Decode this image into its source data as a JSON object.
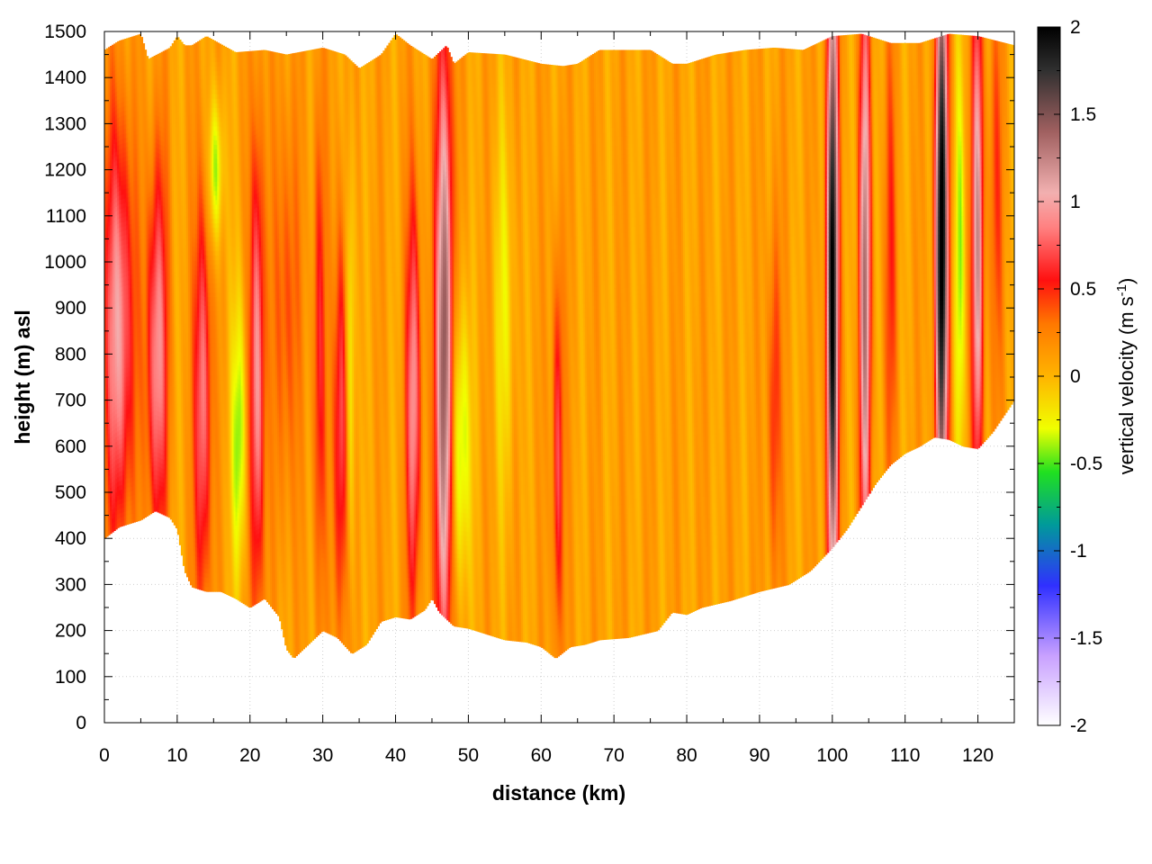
{
  "chart_data": {
    "type": "heatmap",
    "title": "",
    "xlabel": "distance (km)",
    "ylabel": "height (m) asl",
    "xlim": [
      0,
      125
    ],
    "ylim": [
      0,
      1500
    ],
    "grid": true,
    "x_ticks": [
      "0",
      "10",
      "20",
      "30",
      "40",
      "50",
      "60",
      "70",
      "80",
      "90",
      "100",
      "110",
      "120"
    ],
    "y_ticks": [
      "0",
      "100",
      "200",
      "300",
      "400",
      "500",
      "600",
      "700",
      "800",
      "900",
      "1000",
      "1100",
      "1200",
      "1300",
      "1400",
      "1500"
    ],
    "colorbar": {
      "label_prefix": "vertical velocity (m s",
      "label_superscript": "-1",
      "label_suffix": ")",
      "range": [
        -2,
        2
      ],
      "ticks": [
        "2",
        "1.5",
        "1",
        "0.5",
        "0",
        "-0.5",
        "-1",
        "-1.5",
        "-2"
      ],
      "stops": [
        {
          "value": -2.0,
          "color": "#ffffff"
        },
        {
          "value": -1.6,
          "color": "#c8a0ff"
        },
        {
          "value": -1.2,
          "color": "#3030ff"
        },
        {
          "value": -0.85,
          "color": "#009a9a"
        },
        {
          "value": -0.55,
          "color": "#20e020"
        },
        {
          "value": -0.3,
          "color": "#f0ff00"
        },
        {
          "value": 0.0,
          "color": "#ffb400"
        },
        {
          "value": 0.3,
          "color": "#ff7800"
        },
        {
          "value": 0.55,
          "color": "#ff1010"
        },
        {
          "value": 0.85,
          "color": "#ff8080"
        },
        {
          "value": 1.05,
          "color": "#f2b0b0"
        },
        {
          "value": 1.4,
          "color": "#a06060"
        },
        {
          "value": 1.75,
          "color": "#303030"
        },
        {
          "value": 2.0,
          "color": "#000000"
        }
      ]
    },
    "domain": {
      "lower_boundary": [
        [
          0,
          400
        ],
        [
          2,
          425
        ],
        [
          5,
          440
        ],
        [
          7,
          460
        ],
        [
          9,
          445
        ],
        [
          10,
          420
        ],
        [
          11,
          330
        ],
        [
          12,
          295
        ],
        [
          14,
          285
        ],
        [
          16,
          285
        ],
        [
          18,
          270
        ],
        [
          20,
          250
        ],
        [
          22,
          270
        ],
        [
          24,
          230
        ],
        [
          25,
          160
        ],
        [
          26,
          140
        ],
        [
          28,
          170
        ],
        [
          30,
          200
        ],
        [
          32,
          185
        ],
        [
          34,
          150
        ],
        [
          36,
          170
        ],
        [
          38,
          220
        ],
        [
          40,
          230
        ],
        [
          42,
          225
        ],
        [
          44,
          245
        ],
        [
          45,
          270
        ],
        [
          46,
          240
        ],
        [
          48,
          210
        ],
        [
          50,
          205
        ],
        [
          52,
          195
        ],
        [
          55,
          180
        ],
        [
          58,
          175
        ],
        [
          60,
          165
        ],
        [
          62,
          140
        ],
        [
          64,
          165
        ],
        [
          66,
          170
        ],
        [
          68,
          180
        ],
        [
          72,
          185
        ],
        [
          76,
          200
        ],
        [
          78,
          240
        ],
        [
          80,
          235
        ],
        [
          82,
          250
        ],
        [
          86,
          265
        ],
        [
          90,
          285
        ],
        [
          94,
          300
        ],
        [
          97,
          330
        ],
        [
          100,
          380
        ],
        [
          102,
          420
        ],
        [
          104,
          470
        ],
        [
          106,
          520
        ],
        [
          108,
          560
        ],
        [
          110,
          585
        ],
        [
          112,
          600
        ],
        [
          114,
          620
        ],
        [
          116,
          615
        ],
        [
          118,
          600
        ],
        [
          120,
          595
        ],
        [
          122,
          630
        ],
        [
          125,
          700
        ]
      ],
      "upper_boundary": [
        [
          0,
          1460
        ],
        [
          2,
          1480
        ],
        [
          5,
          1495
        ],
        [
          6,
          1440
        ],
        [
          9,
          1465
        ],
        [
          10,
          1490
        ],
        [
          11,
          1470
        ],
        [
          12,
          1470
        ],
        [
          14,
          1490
        ],
        [
          18,
          1455
        ],
        [
          22,
          1460
        ],
        [
          25,
          1450
        ],
        [
          30,
          1465
        ],
        [
          33,
          1450
        ],
        [
          35,
          1420
        ],
        [
          38,
          1450
        ],
        [
          40,
          1495
        ],
        [
          42,
          1470
        ],
        [
          45,
          1440
        ],
        [
          47,
          1470
        ],
        [
          48,
          1430
        ],
        [
          50,
          1455
        ],
        [
          55,
          1450
        ],
        [
          60,
          1430
        ],
        [
          63,
          1425
        ],
        [
          65,
          1430
        ],
        [
          68,
          1460
        ],
        [
          72,
          1460
        ],
        [
          75,
          1460
        ],
        [
          78,
          1430
        ],
        [
          80,
          1430
        ],
        [
          84,
          1450
        ],
        [
          88,
          1460
        ],
        [
          92,
          1465
        ],
        [
          96,
          1460
        ],
        [
          100,
          1490
        ],
        [
          104,
          1495
        ],
        [
          108,
          1475
        ],
        [
          112,
          1475
        ],
        [
          116,
          1495
        ],
        [
          120,
          1490
        ],
        [
          125,
          1470
        ]
      ]
    },
    "features": [
      {
        "x": 2.0,
        "y": 850,
        "sx": 1.4,
        "sy": 320,
        "amp": 0.9
      },
      {
        "x": 7.2,
        "y": 800,
        "sx": 1.0,
        "sy": 300,
        "amp": 0.85
      },
      {
        "x": 13.5,
        "y": 700,
        "sx": 0.8,
        "sy": 330,
        "amp": 0.8
      },
      {
        "x": 15.3,
        "y": 1200,
        "sx": 0.7,
        "sy": 120,
        "amp": -0.55
      },
      {
        "x": 18.5,
        "y": 620,
        "sx": 0.7,
        "sy": 220,
        "amp": -0.55
      },
      {
        "x": 21.0,
        "y": 750,
        "sx": 0.7,
        "sy": 370,
        "amp": 0.9
      },
      {
        "x": 25.0,
        "y": 900,
        "sx": 1.2,
        "sy": 320,
        "amp": 0.35
      },
      {
        "x": 29.5,
        "y": 800,
        "sx": 0.6,
        "sy": 380,
        "amp": 0.5
      },
      {
        "x": 32.5,
        "y": 650,
        "sx": 0.7,
        "sy": 320,
        "amp": 0.7
      },
      {
        "x": 33.8,
        "y": 800,
        "sx": 0.5,
        "sy": 320,
        "amp": -0.45
      },
      {
        "x": 42.5,
        "y": 700,
        "sx": 0.7,
        "sy": 320,
        "amp": 0.85
      },
      {
        "x": 46.7,
        "y": 800,
        "sx": 0.8,
        "sy": 480,
        "amp": 1.45
      },
      {
        "x": 49.0,
        "y": 600,
        "sx": 0.9,
        "sy": 220,
        "amp": -0.55
      },
      {
        "x": 55.0,
        "y": 900,
        "sx": 1.0,
        "sy": 300,
        "amp": -0.3
      },
      {
        "x": 62.3,
        "y": 580,
        "sx": 0.5,
        "sy": 300,
        "amp": 0.65
      },
      {
        "x": 92.0,
        "y": 700,
        "sx": 0.6,
        "sy": 280,
        "amp": 0.45
      },
      {
        "x": 100.0,
        "y": 950,
        "sx": 0.55,
        "sy": 500,
        "amp": 1.95
      },
      {
        "x": 104.5,
        "y": 950,
        "sx": 0.55,
        "sy": 450,
        "amp": 1.2
      },
      {
        "x": 108.0,
        "y": 1000,
        "sx": 0.6,
        "sy": 350,
        "amp": 0.35
      },
      {
        "x": 115.0,
        "y": 1050,
        "sx": 0.6,
        "sy": 450,
        "amp": 2.0
      },
      {
        "x": 117.5,
        "y": 1000,
        "sx": 0.5,
        "sy": 320,
        "amp": -0.45
      },
      {
        "x": 120.0,
        "y": 1050,
        "sx": 0.55,
        "sy": 400,
        "amp": 1.1
      },
      {
        "x": 122.5,
        "y": 1150,
        "sx": 0.7,
        "sy": 300,
        "amp": 0.3
      }
    ]
  }
}
